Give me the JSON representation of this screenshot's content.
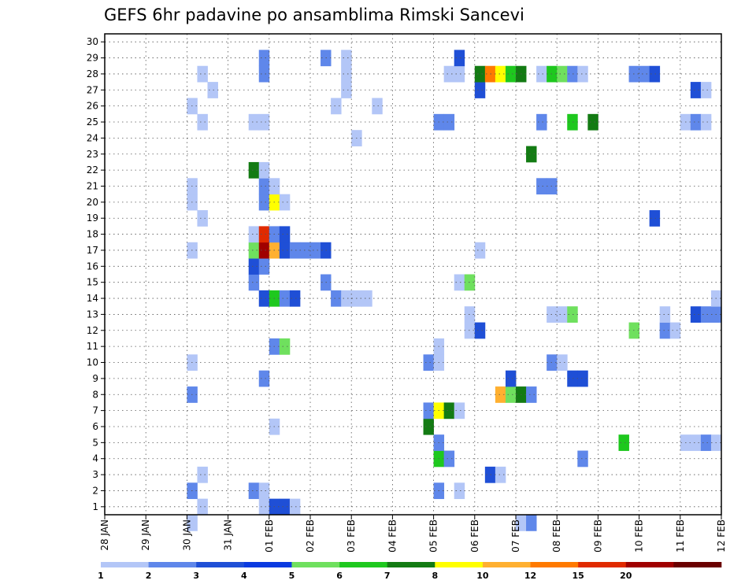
{
  "chart_data": {
    "type": "heatmap",
    "title": "GEFS 6hr padavine po ansamblima Rimski Sancevi",
    "xlabel": "",
    "ylabel": "",
    "x_tick_labels": [
      "28 JAN",
      "29 JAN",
      "30 JAN",
      "31 JAN",
      "01 FEB",
      "02 FEB",
      "03 FEB",
      "04 FEB",
      "05 FEB",
      "06 FEB",
      "07 FEB",
      "08 FEB",
      "09 FEB",
      "10 FEB",
      "11 FEB",
      "12 FEB"
    ],
    "xlim": [
      0,
      15
    ],
    "x_step_days": 0.25,
    "y_tick_labels": [
      "1",
      "2",
      "3",
      "4",
      "5",
      "6",
      "7",
      "8",
      "9",
      "10",
      "11",
      "12",
      "13",
      "14",
      "15",
      "16",
      "17",
      "18",
      "19",
      "20",
      "21",
      "22",
      "23",
      "24",
      "25",
      "26",
      "27",
      "28",
      "29",
      "30"
    ],
    "ylim": [
      0.5,
      30.5
    ],
    "grid": true,
    "colorbar": {
      "labels": [
        "1",
        "2",
        "3",
        "4",
        "5",
        "6",
        "7",
        "8",
        "10",
        "12",
        "15",
        "20"
      ],
      "colors": [
        "#b3c6f7",
        "#5f87ea",
        "#1f4fd6",
        "#0a3ae0",
        "#6fe05e",
        "#1ec81e",
        "#137b13",
        "#ffff00",
        "#ffb030",
        "#ff7a00",
        "#e02a00",
        "#a00000",
        "#6a0000"
      ]
    },
    "cells": [
      {
        "x": 2.0,
        "y": 0,
        "level": 0
      },
      {
        "x": 10.0,
        "y": 0,
        "level": 0
      },
      {
        "x": 10.25,
        "y": 0,
        "level": 1
      },
      {
        "x": 2.25,
        "y": 1,
        "level": 0
      },
      {
        "x": 3.75,
        "y": 1,
        "level": 0
      },
      {
        "x": 4.0,
        "y": 1,
        "level": 2
      },
      {
        "x": 4.25,
        "y": 1,
        "level": 2
      },
      {
        "x": 4.5,
        "y": 1,
        "level": 0
      },
      {
        "x": 2.0,
        "y": 2,
        "level": 1
      },
      {
        "x": 3.5,
        "y": 2,
        "level": 1
      },
      {
        "x": 3.75,
        "y": 2,
        "level": 0
      },
      {
        "x": 8.0,
        "y": 2,
        "level": 1
      },
      {
        "x": 8.5,
        "y": 2,
        "level": 0
      },
      {
        "x": 2.25,
        "y": 3,
        "level": 0
      },
      {
        "x": 9.25,
        "y": 3,
        "level": 2
      },
      {
        "x": 9.5,
        "y": 3,
        "level": 0
      },
      {
        "x": 8.0,
        "y": 4,
        "level": 5
      },
      {
        "x": 8.25,
        "y": 4,
        "level": 1
      },
      {
        "x": 11.5,
        "y": 4,
        "level": 1
      },
      {
        "x": 8.0,
        "y": 5,
        "level": 1
      },
      {
        "x": 12.5,
        "y": 5,
        "level": 5
      },
      {
        "x": 14.0,
        "y": 5,
        "level": 0
      },
      {
        "x": 14.25,
        "y": 5,
        "level": 0
      },
      {
        "x": 14.5,
        "y": 5,
        "level": 1
      },
      {
        "x": 14.75,
        "y": 5,
        "level": 0
      },
      {
        "x": 4.0,
        "y": 6,
        "level": 0
      },
      {
        "x": 7.75,
        "y": 6,
        "level": 6
      },
      {
        "x": 7.75,
        "y": 7,
        "level": 1
      },
      {
        "x": 8.0,
        "y": 7,
        "level": 7
      },
      {
        "x": 8.25,
        "y": 7,
        "level": 6
      },
      {
        "x": 8.5,
        "y": 7,
        "level": 0
      },
      {
        "x": 2.0,
        "y": 8,
        "level": 1
      },
      {
        "x": 9.5,
        "y": 8,
        "level": 8
      },
      {
        "x": 9.75,
        "y": 8,
        "level": 4
      },
      {
        "x": 10.0,
        "y": 8,
        "level": 6
      },
      {
        "x": 10.25,
        "y": 8,
        "level": 1
      },
      {
        "x": 3.75,
        "y": 9,
        "level": 1
      },
      {
        "x": 9.75,
        "y": 9,
        "level": 2
      },
      {
        "x": 11.25,
        "y": 9,
        "level": 2
      },
      {
        "x": 11.5,
        "y": 9,
        "level": 2
      },
      {
        "x": 2.0,
        "y": 10,
        "level": 0
      },
      {
        "x": 7.75,
        "y": 10,
        "level": 1
      },
      {
        "x": 8.0,
        "y": 10,
        "level": 0
      },
      {
        "x": 10.75,
        "y": 10,
        "level": 1
      },
      {
        "x": 11.0,
        "y": 10,
        "level": 0
      },
      {
        "x": 4.0,
        "y": 11,
        "level": 1
      },
      {
        "x": 4.25,
        "y": 11,
        "level": 4
      },
      {
        "x": 8.0,
        "y": 11,
        "level": 0
      },
      {
        "x": 8.75,
        "y": 12,
        "level": 0
      },
      {
        "x": 9.0,
        "y": 12,
        "level": 2
      },
      {
        "x": 12.75,
        "y": 12,
        "level": 4
      },
      {
        "x": 13.5,
        "y": 12,
        "level": 1
      },
      {
        "x": 13.75,
        "y": 12,
        "level": 0
      },
      {
        "x": 8.75,
        "y": 13,
        "level": 0
      },
      {
        "x": 10.75,
        "y": 13,
        "level": 0
      },
      {
        "x": 11.0,
        "y": 13,
        "level": 0
      },
      {
        "x": 11.25,
        "y": 13,
        "level": 4
      },
      {
        "x": 13.5,
        "y": 13,
        "level": 0
      },
      {
        "x": 14.25,
        "y": 13,
        "level": 2
      },
      {
        "x": 14.5,
        "y": 13,
        "level": 1
      },
      {
        "x": 14.75,
        "y": 13,
        "level": 1
      },
      {
        "x": 3.75,
        "y": 14,
        "level": 2
      },
      {
        "x": 4.0,
        "y": 14,
        "level": 5
      },
      {
        "x": 4.25,
        "y": 14,
        "level": 1
      },
      {
        "x": 4.5,
        "y": 14,
        "level": 2
      },
      {
        "x": 5.5,
        "y": 14,
        "level": 1
      },
      {
        "x": 5.75,
        "y": 14,
        "level": 0
      },
      {
        "x": 6.0,
        "y": 14,
        "level": 0
      },
      {
        "x": 6.25,
        "y": 14,
        "level": 0
      },
      {
        "x": 14.75,
        "y": 14,
        "level": 0
      },
      {
        "x": 3.5,
        "y": 15,
        "level": 1
      },
      {
        "x": 5.25,
        "y": 15,
        "level": 1
      },
      {
        "x": 8.5,
        "y": 15,
        "level": 0
      },
      {
        "x": 8.75,
        "y": 15,
        "level": 4
      },
      {
        "x": 3.5,
        "y": 16,
        "level": 2
      },
      {
        "x": 3.75,
        "y": 16,
        "level": 1
      },
      {
        "x": 2.0,
        "y": 17,
        "level": 0
      },
      {
        "x": 3.5,
        "y": 17,
        "level": 4
      },
      {
        "x": 3.75,
        "y": 17,
        "level": 11
      },
      {
        "x": 4.0,
        "y": 17,
        "level": 8
      },
      {
        "x": 4.25,
        "y": 17,
        "level": 2
      },
      {
        "x": 4.5,
        "y": 17,
        "level": 1
      },
      {
        "x": 4.75,
        "y": 17,
        "level": 1
      },
      {
        "x": 5.0,
        "y": 17,
        "level": 1
      },
      {
        "x": 5.25,
        "y": 17,
        "level": 2
      },
      {
        "x": 9.0,
        "y": 17,
        "level": 0
      },
      {
        "x": 3.5,
        "y": 18,
        "level": 0
      },
      {
        "x": 3.75,
        "y": 18,
        "level": 10
      },
      {
        "x": 4.0,
        "y": 18,
        "level": 1
      },
      {
        "x": 4.25,
        "y": 18,
        "level": 2
      },
      {
        "x": 2.25,
        "y": 19,
        "level": 0
      },
      {
        "x": 13.25,
        "y": 19,
        "level": 2
      },
      {
        "x": 2.0,
        "y": 20,
        "level": 0
      },
      {
        "x": 3.75,
        "y": 20,
        "level": 1
      },
      {
        "x": 4.0,
        "y": 20,
        "level": 7
      },
      {
        "x": 4.25,
        "y": 20,
        "level": 0
      },
      {
        "x": 2.0,
        "y": 21,
        "level": 0
      },
      {
        "x": 3.75,
        "y": 21,
        "level": 1
      },
      {
        "x": 4.0,
        "y": 21,
        "level": 0
      },
      {
        "x": 10.5,
        "y": 21,
        "level": 1
      },
      {
        "x": 10.75,
        "y": 21,
        "level": 1
      },
      {
        "x": 3.5,
        "y": 22,
        "level": 6
      },
      {
        "x": 3.75,
        "y": 22,
        "level": 0
      },
      {
        "x": 10.25,
        "y": 23,
        "level": 6
      },
      {
        "x": 6.0,
        "y": 24,
        "level": 0
      },
      {
        "x": 2.25,
        "y": 25,
        "level": 0
      },
      {
        "x": 3.5,
        "y": 25,
        "level": 0
      },
      {
        "x": 3.75,
        "y": 25,
        "level": 0
      },
      {
        "x": 8.0,
        "y": 25,
        "level": 1
      },
      {
        "x": 8.25,
        "y": 25,
        "level": 1
      },
      {
        "x": 10.5,
        "y": 25,
        "level": 1
      },
      {
        "x": 11.25,
        "y": 25,
        "level": 5
      },
      {
        "x": 11.75,
        "y": 25,
        "level": 6
      },
      {
        "x": 14.0,
        "y": 25,
        "level": 0
      },
      {
        "x": 14.25,
        "y": 25,
        "level": 1
      },
      {
        "x": 14.5,
        "y": 25,
        "level": 0
      },
      {
        "x": 2.0,
        "y": 26,
        "level": 0
      },
      {
        "x": 5.5,
        "y": 26,
        "level": 0
      },
      {
        "x": 6.5,
        "y": 26,
        "level": 0
      },
      {
        "x": 2.5,
        "y": 27,
        "level": 0
      },
      {
        "x": 5.75,
        "y": 27,
        "level": 0
      },
      {
        "x": 9.0,
        "y": 27,
        "level": 2
      },
      {
        "x": 14.25,
        "y": 27,
        "level": 2
      },
      {
        "x": 14.5,
        "y": 27,
        "level": 0
      },
      {
        "x": 2.25,
        "y": 28,
        "level": 0
      },
      {
        "x": 3.75,
        "y": 28,
        "level": 1
      },
      {
        "x": 5.75,
        "y": 28,
        "level": 0
      },
      {
        "x": 8.25,
        "y": 28,
        "level": 0
      },
      {
        "x": 8.5,
        "y": 28,
        "level": 0
      },
      {
        "x": 9.0,
        "y": 28,
        "level": 6
      },
      {
        "x": 9.25,
        "y": 28,
        "level": 9
      },
      {
        "x": 9.5,
        "y": 28,
        "level": 7
      },
      {
        "x": 9.75,
        "y": 28,
        "level": 5
      },
      {
        "x": 10.0,
        "y": 28,
        "level": 6
      },
      {
        "x": 10.5,
        "y": 28,
        "level": 0
      },
      {
        "x": 10.75,
        "y": 28,
        "level": 5
      },
      {
        "x": 11.0,
        "y": 28,
        "level": 4
      },
      {
        "x": 11.25,
        "y": 28,
        "level": 1
      },
      {
        "x": 11.5,
        "y": 28,
        "level": 0
      },
      {
        "x": 12.75,
        "y": 28,
        "level": 1
      },
      {
        "x": 13.0,
        "y": 28,
        "level": 1
      },
      {
        "x": 13.25,
        "y": 28,
        "level": 2
      },
      {
        "x": 3.75,
        "y": 29,
        "level": 1
      },
      {
        "x": 5.25,
        "y": 29,
        "level": 1
      },
      {
        "x": 5.75,
        "y": 29,
        "level": 0
      },
      {
        "x": 8.5,
        "y": 29,
        "level": 2
      }
    ]
  }
}
